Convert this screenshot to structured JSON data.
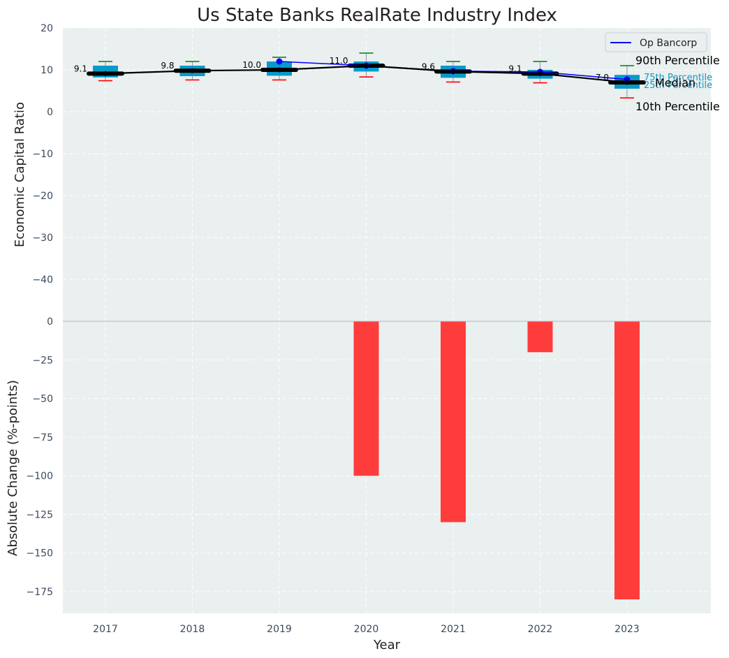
{
  "chart_data": [
    {
      "type": "box",
      "title": "Us State Banks RealRate Industry Index",
      "ylabel": "Economic Capital Ratio",
      "ylim": [
        -50,
        20
      ],
      "yticks": [
        20,
        10,
        0,
        -10,
        -20,
        -30,
        -40
      ],
      "categories": [
        "2017",
        "2018",
        "2019",
        "2020",
        "2021",
        "2022",
        "2023"
      ],
      "boxes": [
        {
          "p10": 7.4,
          "p25": 8.2,
          "median": 9.1,
          "p75": 11.0,
          "p90": 12.0
        },
        {
          "p10": 7.6,
          "p25": 8.5,
          "median": 9.8,
          "p75": 11.0,
          "p90": 12.0
        },
        {
          "p10": 7.6,
          "p25": 8.6,
          "median": 10.0,
          "p75": 12.0,
          "p90": 13.0
        },
        {
          "p10": 8.3,
          "p25": 9.6,
          "median": 11.0,
          "p75": 12.0,
          "p90": 14.0
        },
        {
          "p10": 7.1,
          "p25": 8.1,
          "median": 9.6,
          "p75": 11.0,
          "p90": 12.0
        },
        {
          "p10": 6.9,
          "p25": 7.9,
          "median": 9.1,
          "p75": 10.0,
          "p90": 12.0
        },
        {
          "p10": 3.3,
          "p25": 5.5,
          "median": 7.0,
          "p75": 8.8,
          "p90": 11.0
        }
      ],
      "median_labels": [
        "9.1",
        "9.8",
        "10.0",
        "11.0",
        "9.6",
        "9.1",
        "7.0"
      ],
      "series": [
        {
          "name": "Op Bancorp",
          "color": "#0000ff",
          "values": [
            null,
            null,
            12.0,
            11.0,
            9.7,
            9.5,
            7.7
          ]
        },
        {
          "name": "Median",
          "color": "#000000",
          "values": [
            9.1,
            9.8,
            10.0,
            11.0,
            9.6,
            9.1,
            7.0
          ]
        }
      ],
      "legend": {
        "position": "top-right",
        "entries": [
          "Op Bancorp"
        ]
      },
      "annotations": {
        "p90": "90th Percentile",
        "p75": "75th Percentile",
        "median": "Median",
        "p25": "25th Percentile",
        "p10": "10th Percentile"
      },
      "colors": {
        "box": "#0a9ac8",
        "whisker_top": "#008000",
        "whisker_bottom": "#ff0000",
        "median": "#000000",
        "company": "#0000ff"
      }
    },
    {
      "type": "bar",
      "ylabel": "Absolute Change (%-points)",
      "xlabel": "Year",
      "ylim": [
        -189,
        0
      ],
      "yticks": [
        0,
        -25,
        -50,
        -75,
        -100,
        -125,
        -150,
        -175
      ],
      "categories": [
        "2017",
        "2018",
        "2019",
        "2020",
        "2021",
        "2022",
        "2023"
      ],
      "values": [
        0,
        0,
        0,
        -100,
        -130,
        -20,
        -180
      ],
      "color": "#ff3c3c"
    }
  ]
}
